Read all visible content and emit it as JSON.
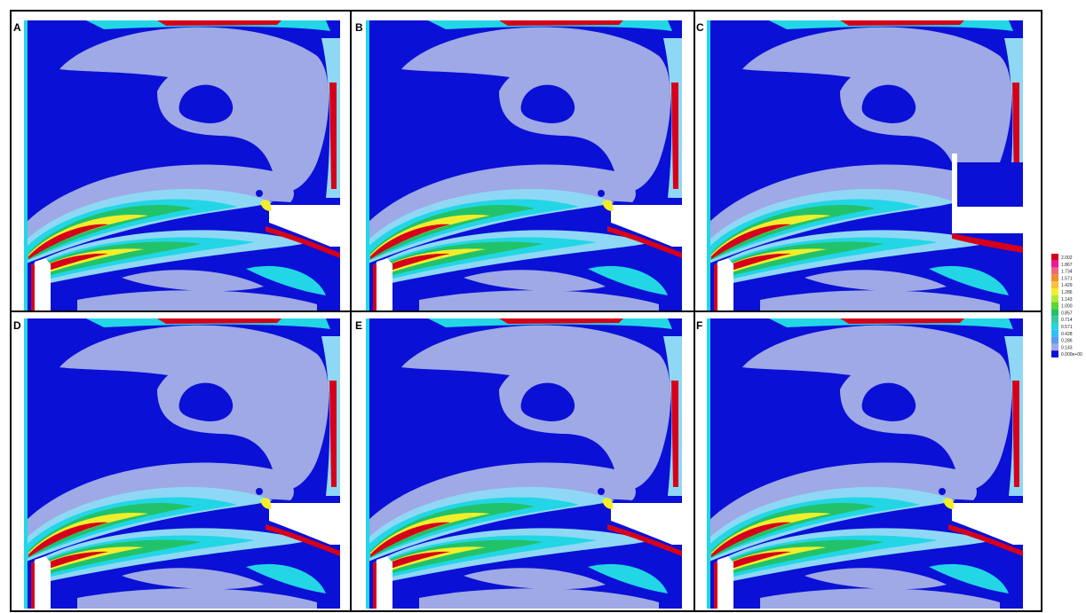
{
  "figure": {
    "panels": [
      {
        "label": "A",
        "variant": "standard"
      },
      {
        "label": "B",
        "variant": "standard"
      },
      {
        "label": "C",
        "variant": "open-right"
      },
      {
        "label": "D",
        "variant": "standard"
      },
      {
        "label": "E",
        "variant": "standard"
      },
      {
        "label": "F",
        "variant": "standard"
      }
    ],
    "legend": {
      "levels": [
        {
          "value": "2.002",
          "color": "#d7001b"
        },
        {
          "value": "1.867",
          "color": "#f0189a"
        },
        {
          "value": "1.734",
          "color": "#ee6a7a"
        },
        {
          "value": "1.571",
          "color": "#f09030"
        },
        {
          "value": "1.429",
          "color": "#f6c23a"
        },
        {
          "value": "1.286",
          "color": "#f2ef2a"
        },
        {
          "value": "1.143",
          "color": "#b4e838"
        },
        {
          "value": "1.000",
          "color": "#5cd633"
        },
        {
          "value": "0.857",
          "color": "#22c26a"
        },
        {
          "value": "0.714",
          "color": "#3ec6a0"
        },
        {
          "value": "0.571",
          "color": "#22d6e6"
        },
        {
          "value": "0.428",
          "color": "#33bff5"
        },
        {
          "value": "0.286",
          "color": "#5d9af0"
        },
        {
          "value": "0.143",
          "color": "#9ea9e6"
        },
        {
          "value": "0.000e+00",
          "color": "#0a10d6"
        }
      ]
    },
    "colors": {
      "background": "#0a10d6",
      "lavender": "#9ea9e6",
      "cyan": "#22d6e6",
      "light_blue": "#8fd8f5",
      "green": "#22c26a",
      "yellow": "#f2ef2a",
      "orange": "#f09030",
      "red": "#d7001b",
      "magenta": "#f0189a",
      "frame": "#000000"
    }
  }
}
